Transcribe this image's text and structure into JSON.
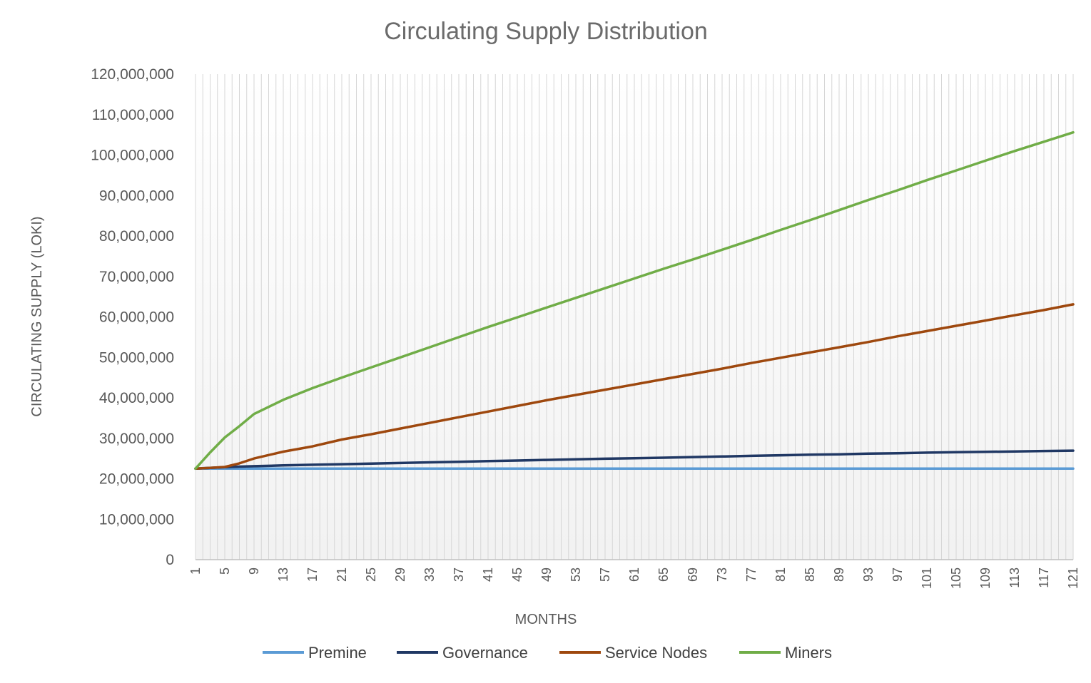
{
  "chart_data": {
    "type": "line",
    "title": "Circulating Supply Distribution",
    "xlabel": "MONTHS",
    "ylabel": "CIRCULATING SUPPLY (LOKI)",
    "ylim": [
      0,
      120000000
    ],
    "yticks": [
      0,
      10000000,
      20000000,
      30000000,
      40000000,
      50000000,
      60000000,
      70000000,
      80000000,
      90000000,
      100000000,
      110000000,
      120000000
    ],
    "ytick_labels": [
      "0",
      "10,000,000",
      "20,000,000",
      "30,000,000",
      "40,000,000",
      "50,000,000",
      "60,000,000",
      "70,000,000",
      "80,000,000",
      "90,000,000",
      "100,000,000",
      "110,000,000",
      "120,000,000"
    ],
    "x_range": [
      1,
      121
    ],
    "xtick_labels": [
      "1",
      "5",
      "9",
      "13",
      "17",
      "21",
      "25",
      "29",
      "33",
      "37",
      "41",
      "45",
      "49",
      "53",
      "57",
      "61",
      "65",
      "69",
      "73",
      "77",
      "81",
      "85",
      "89",
      "93",
      "97",
      "101",
      "105",
      "109",
      "113",
      "117",
      "121"
    ],
    "grid": true,
    "legend_position": "bottom",
    "x": [
      1,
      3,
      5,
      7,
      9,
      13,
      17,
      21,
      25,
      29,
      33,
      37,
      41,
      45,
      49,
      53,
      57,
      61,
      65,
      69,
      73,
      77,
      81,
      85,
      89,
      93,
      97,
      101,
      105,
      109,
      113,
      117,
      121
    ],
    "series": [
      {
        "name": "Premine",
        "color": "#5b9bd5",
        "values": [
          22500000,
          22500000,
          22500000,
          22500000,
          22500000,
          22500000,
          22500000,
          22500000,
          22500000,
          22500000,
          22500000,
          22500000,
          22500000,
          22500000,
          22500000,
          22500000,
          22500000,
          22500000,
          22500000,
          22500000,
          22500000,
          22500000,
          22500000,
          22500000,
          22500000,
          22500000,
          22500000,
          22500000,
          22500000,
          22500000,
          22500000,
          22500000,
          22500000
        ]
      },
      {
        "name": "Governance",
        "color": "#203864",
        "values": [
          22500000,
          22700000,
          22850000,
          23000000,
          23100000,
          23300000,
          23450000,
          23600000,
          23750000,
          23900000,
          24050000,
          24200000,
          24350000,
          24500000,
          24650000,
          24800000,
          24950000,
          25050000,
          25200000,
          25350000,
          25500000,
          25650000,
          25800000,
          25950000,
          26050000,
          26200000,
          26300000,
          26450000,
          26550000,
          26650000,
          26750000,
          26850000,
          26950000
        ]
      },
      {
        "name": "Service Nodes",
        "color": "#9e480e",
        "values": [
          22500000,
          22700000,
          22900000,
          23800000,
          25000000,
          26700000,
          28000000,
          29700000,
          31000000,
          32400000,
          33800000,
          35200000,
          36600000,
          38000000,
          39400000,
          40700000,
          42000000,
          43300000,
          44600000,
          45900000,
          47200000,
          48600000,
          49900000,
          51200000,
          52500000,
          53800000,
          55200000,
          56500000,
          57800000,
          59100000,
          60400000,
          61700000,
          63100000
        ]
      },
      {
        "name": "Miners",
        "color": "#70ad47",
        "values": [
          22500000,
          26500000,
          30200000,
          33000000,
          36000000,
          39500000,
          42400000,
          45000000,
          47500000,
          50000000,
          52500000,
          55000000,
          57500000,
          59900000,
          62300000,
          64700000,
          67100000,
          69500000,
          71900000,
          74200000,
          76600000,
          79000000,
          81500000,
          83900000,
          86400000,
          88900000,
          91300000,
          93800000,
          96200000,
          98600000,
          101000000,
          103300000,
          105600000
        ]
      }
    ]
  }
}
